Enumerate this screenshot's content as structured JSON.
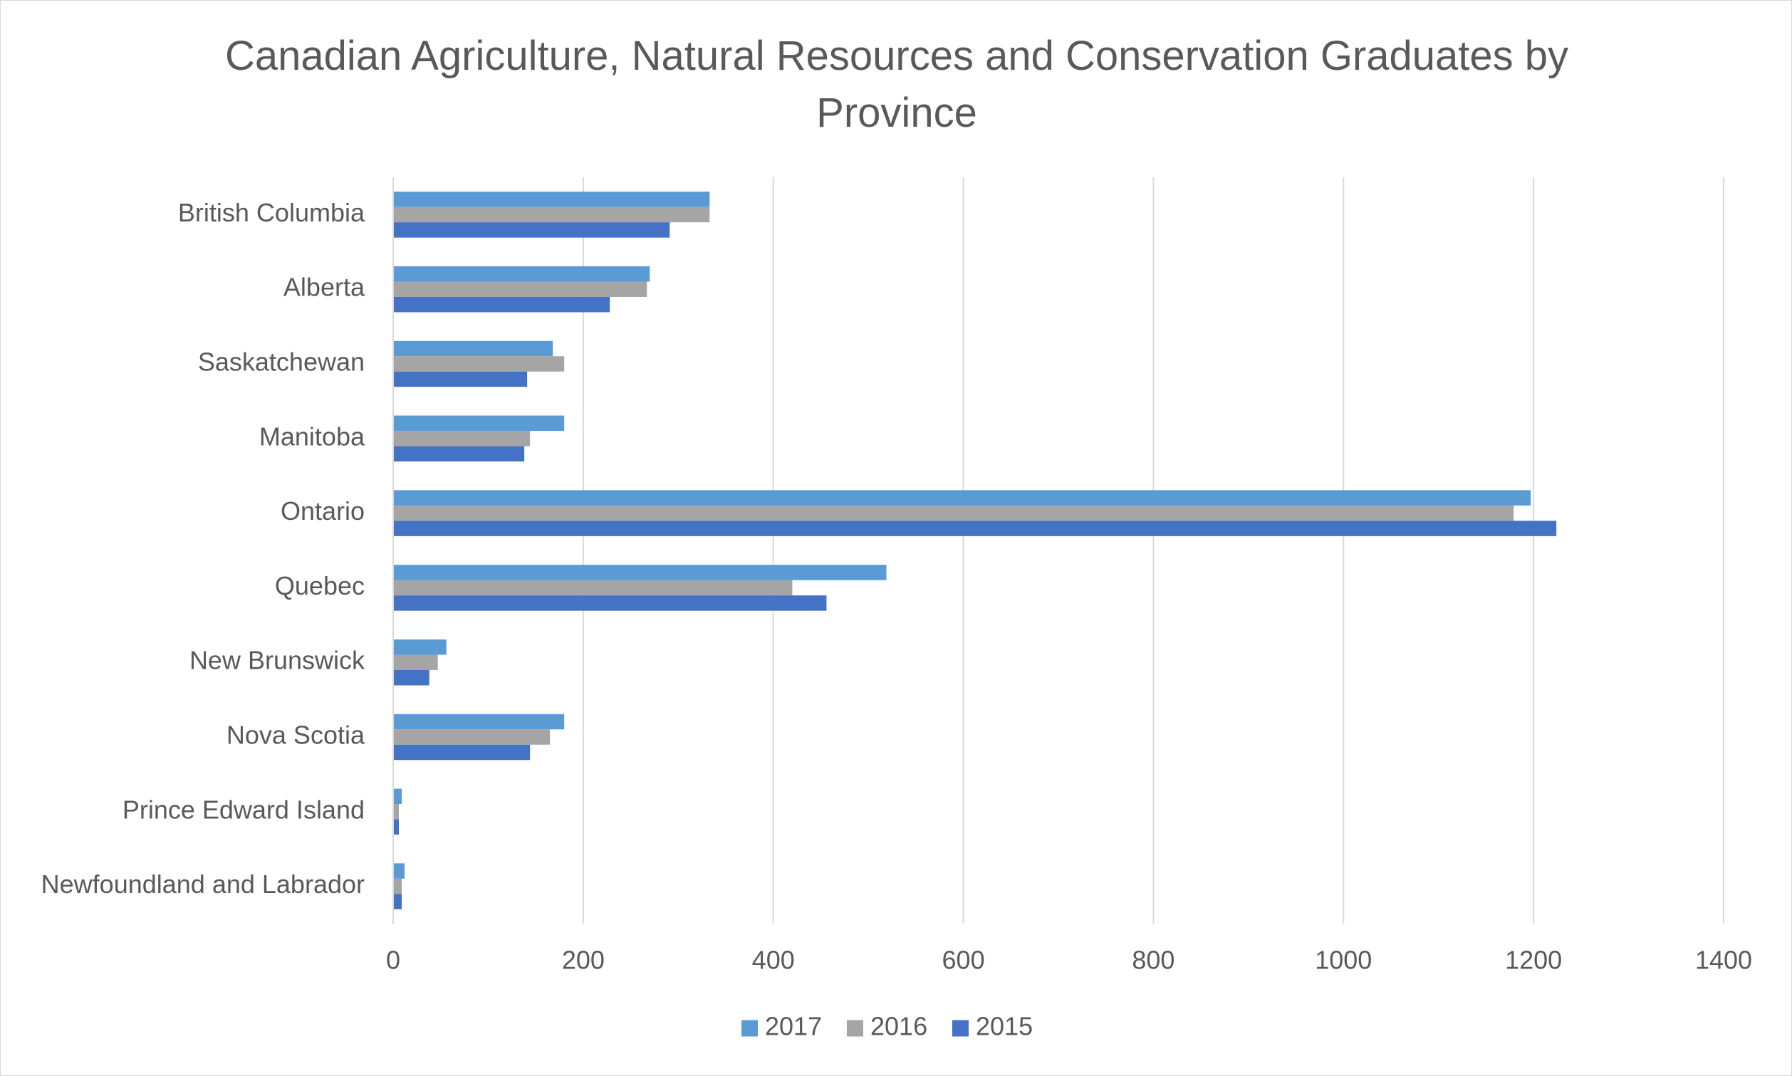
{
  "chart_data": {
    "type": "bar",
    "orientation": "horizontal",
    "title": "Canadian Agriculture, Natural Resources and Conservation Graduates by Province",
    "categories": [
      "British Columbia",
      "Alberta",
      "Saskatchewan",
      "Manitoba",
      "Ontario",
      "Quebec",
      "New Brunswick",
      "Nova Scotia",
      "Prince Edward Island",
      "Newfoundland and Labrador"
    ],
    "series": [
      {
        "name": "2017",
        "color": "#5b9bd5",
        "values": [
          333,
          270,
          168,
          180,
          1197,
          519,
          56,
          180,
          9,
          12
        ]
      },
      {
        "name": "2016",
        "color": "#a5a5a5",
        "values": [
          333,
          267,
          180,
          144,
          1179,
          420,
          47,
          165,
          6,
          9
        ]
      },
      {
        "name": "2015",
        "color": "#4472c4",
        "values": [
          291,
          228,
          141,
          138,
          1224,
          456,
          38,
          144,
          6,
          9
        ]
      }
    ],
    "xlim": [
      0,
      1400
    ],
    "xticks": [
      "0",
      "200",
      "400",
      "600",
      "800",
      "1000",
      "1200",
      "1400"
    ],
    "xlabel": "",
    "ylabel": "",
    "grid": "vertical",
    "legend": "bottom"
  }
}
